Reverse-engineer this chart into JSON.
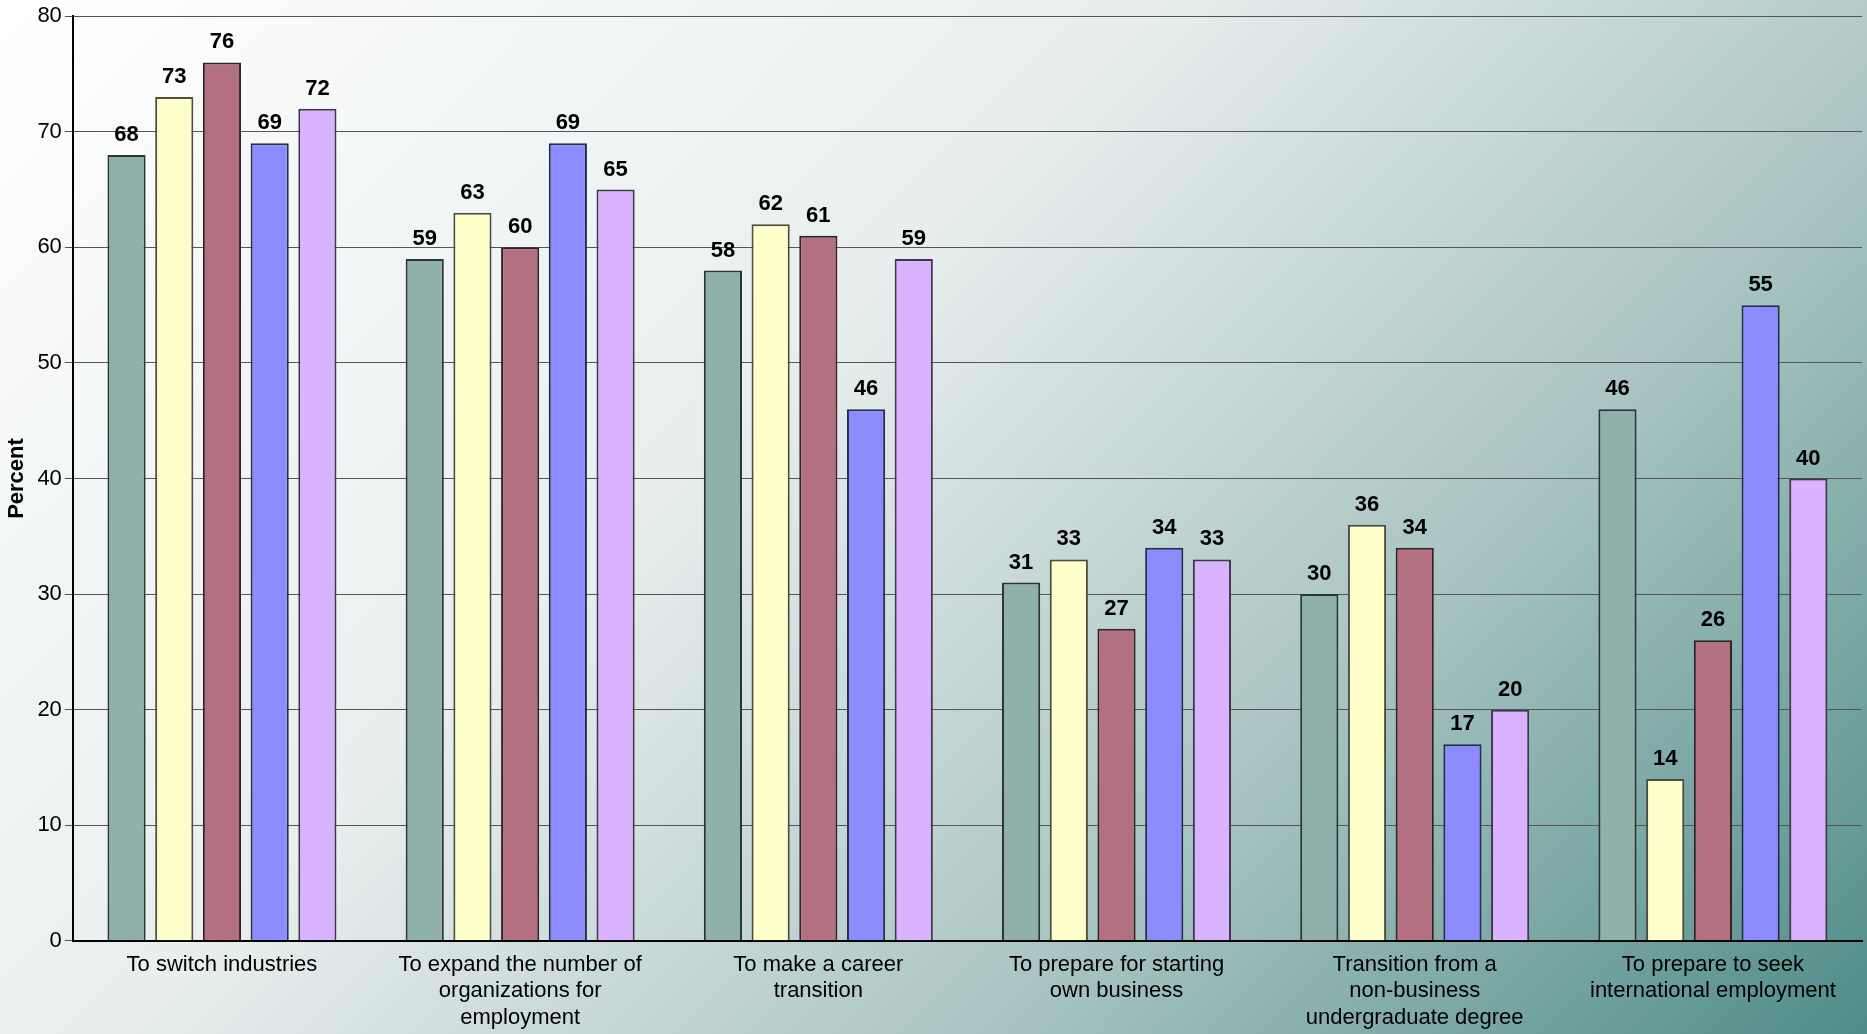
{
  "chart_data": {
    "type": "bar",
    "ylabel": "Percent",
    "categories": [
      "To switch industries",
      "To expand the number of organizations for employment",
      "To make a career transition",
      "To prepare for starting own business",
      "Transition from a non-business undergraduate degree",
      "To prepare to seek international employment"
    ],
    "series": [
      {
        "color": "#8fb0ab",
        "values": [
          68,
          59,
          58,
          31,
          30,
          46
        ]
      },
      {
        "color": "#ffffcc",
        "values": [
          73,
          63,
          62,
          33,
          36,
          14
        ]
      },
      {
        "color": "#b27080",
        "values": [
          76,
          60,
          61,
          27,
          34,
          26
        ]
      },
      {
        "color": "#8c8cff",
        "values": [
          69,
          69,
          46,
          34,
          17,
          55
        ]
      },
      {
        "color": "#d9b3ff",
        "values": [
          72,
          65,
          59,
          33,
          20,
          40
        ]
      }
    ],
    "ylim": [
      0,
      80
    ],
    "yticks": [
      0,
      10,
      20,
      30,
      40,
      50,
      60,
      70,
      80
    ],
    "grid": "y",
    "data_labels": true,
    "legend": false
  }
}
